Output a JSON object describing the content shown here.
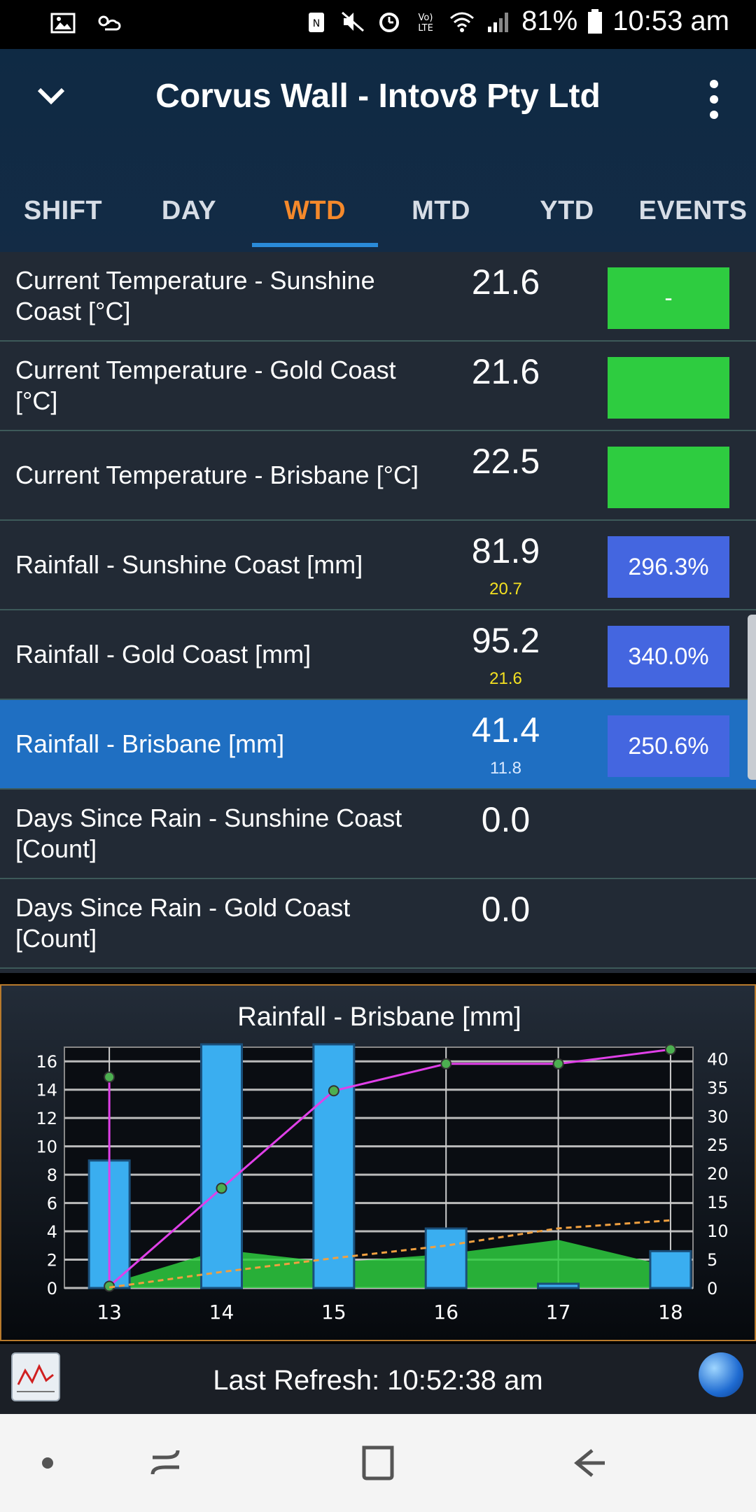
{
  "status_bar": {
    "battery": "81%",
    "time": "10:53 am",
    "icons": [
      "image-icon",
      "weather-icon",
      "nfc-icon",
      "mute-icon",
      "alarm-icon",
      "volte-icon",
      "wifi-icon",
      "signal-icon",
      "battery-icon"
    ]
  },
  "header": {
    "title": "Corvus Wall - Intov8 Pty Ltd",
    "back_icon": "chevron-down-icon",
    "menu_icon": "more-vert-icon"
  },
  "tabs": [
    {
      "label": "SHIFT"
    },
    {
      "label": "DAY"
    },
    {
      "label": "WTD",
      "active": true
    },
    {
      "label": "MTD"
    },
    {
      "label": "YTD"
    },
    {
      "label": "EVENTS"
    }
  ],
  "rows": [
    {
      "label": "Current Temperature - Sunshine Coast [°C]",
      "value": "21.6",
      "sub": "",
      "badge": "-",
      "badge_color": "#2ecc40"
    },
    {
      "label": "Current Temperature - Gold Coast [°C]",
      "value": "21.6",
      "sub": "",
      "badge": "",
      "badge_color": "#2ecc40"
    },
    {
      "label": "Current Temperature - Brisbane [°C]",
      "value": "22.5",
      "sub": "",
      "badge": "",
      "badge_color": "#2ecc40"
    },
    {
      "label": "Rainfall - Sunshine Coast [mm]",
      "value": "81.9",
      "sub": "20.7",
      "badge": "296.3%",
      "badge_color": "#4466e0"
    },
    {
      "label": "Rainfall - Gold Coast [mm]",
      "value": "95.2",
      "sub": "21.6",
      "badge": "340.0%",
      "badge_color": "#4466e0"
    },
    {
      "label": "Rainfall - Brisbane [mm]",
      "value": "41.4",
      "sub": "11.8",
      "badge": "250.6%",
      "badge_color": "#4466e0",
      "selected": true
    },
    {
      "label": "Days Since Rain - Sunshine Coast [Count]",
      "value": "0.0",
      "sub": "",
      "badge": null
    },
    {
      "label": "Days Since Rain - Gold Coast [Count]",
      "value": "0.0",
      "sub": "",
      "badge": null
    }
  ],
  "chart_data": {
    "type": "bar",
    "title": "Rainfall - Brisbane [mm]",
    "categories": [
      "13",
      "14",
      "15",
      "16",
      "17",
      "18"
    ],
    "ylim_left": [
      0,
      17
    ],
    "yticks_left": [
      0,
      2,
      4,
      6,
      8,
      10,
      12,
      14,
      16
    ],
    "ylim_right": [
      0,
      42
    ],
    "yticks_right": [
      0,
      5,
      10,
      15,
      20,
      25,
      30,
      35,
      40
    ],
    "grid": true,
    "series": [
      {
        "type": "bar",
        "axis": "left",
        "color": "#3aaef0",
        "values": [
          9.0,
          17.2,
          17.2,
          4.2,
          0.3,
          2.6
        ]
      },
      {
        "type": "area",
        "axis": "left",
        "color": "#2ecc40",
        "values": [
          0.3,
          2.7,
          1.8,
          2.4,
          3.4,
          1.5
        ]
      },
      {
        "type": "line",
        "axis": "right",
        "color": "#e040e8",
        "markers": true,
        "x": [
          13,
          13,
          14,
          15,
          16,
          17,
          18
        ],
        "values": [
          36.8,
          0.3,
          17.4,
          34.4,
          39.1,
          39.1,
          41.6
        ]
      },
      {
        "type": "line",
        "axis": "right",
        "color": "#f0a040",
        "dashed": true,
        "x": [
          13,
          14,
          15,
          16,
          17,
          18
        ],
        "values": [
          0.1,
          2.8,
          5.2,
          7.4,
          10.4,
          11.8
        ]
      }
    ]
  },
  "footer": {
    "refresh_text": "Last Refresh: 10:52:38 am",
    "chart_icon": "chart-icon",
    "globe_icon": "globe-icon"
  },
  "nav_bar": {
    "icons": [
      "dot-icon",
      "recents-icon",
      "home-icon",
      "back-arrow-icon"
    ]
  }
}
